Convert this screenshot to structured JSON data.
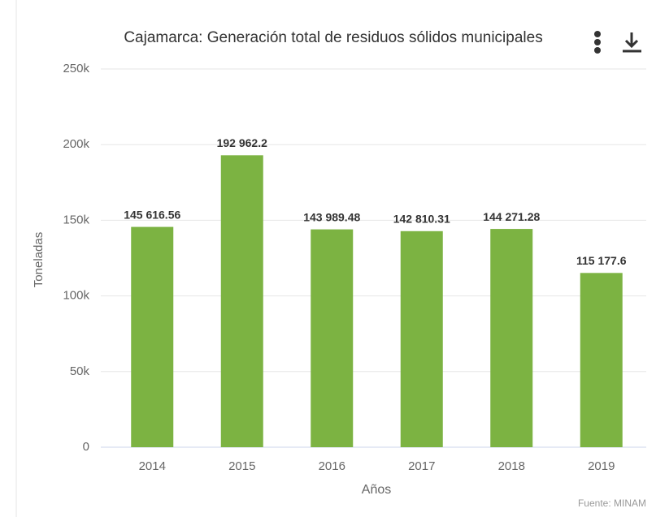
{
  "chart_data": {
    "type": "bar",
    "title": "Cajamarca: Generación total de residuos sólidos municipales",
    "x_label": "Años",
    "y_label": "Toneladas",
    "credits": "Fuente: MINAM",
    "categories": [
      "2014",
      "2015",
      "2016",
      "2017",
      "2018",
      "2019"
    ],
    "values": [
      145616.56,
      192962.2,
      143989.48,
      142810.31,
      144271.28,
      115177.6
    ],
    "value_labels": [
      "145 616.56",
      "192 962.2",
      "143 989.48",
      "142 810.31",
      "144 271.28",
      "115 177.6"
    ],
    "color": "#7cb342",
    "ylim": [
      0,
      250000
    ],
    "yticks": [
      0,
      {
        "value": 50000,
        "label": "50k"
      },
      {
        "value": 100000,
        "label": "100k"
      },
      {
        "value": 150000,
        "label": "150k"
      },
      {
        "value": 200000,
        "label": "200k"
      },
      {
        "value": 250000,
        "label": "250k"
      }
    ],
    "grid": true
  }
}
